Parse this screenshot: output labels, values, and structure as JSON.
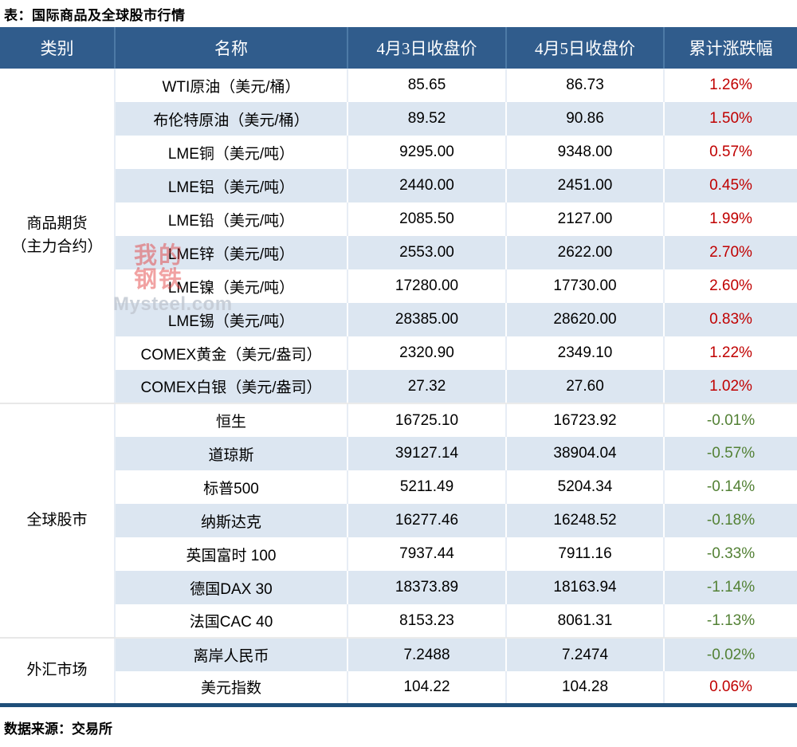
{
  "chart_data": {
    "type": "table",
    "title": "表：国际商品及全球股市行情",
    "source": "数据来源：交易所",
    "columns": [
      "类别",
      "名称",
      "4月3日收盘价",
      "4月5日收盘价",
      "累计涨跌幅"
    ],
    "groups": [
      {
        "category": "商品期货（主力合约）",
        "category_lines": [
          "商品期货",
          "（主力合约）"
        ],
        "rows": [
          {
            "name": "WTI原油（美元/桶）",
            "apr3": "85.65",
            "apr5": "86.73",
            "change": "1.26%"
          },
          {
            "name": "布伦特原油（美元/桶）",
            "apr3": "89.52",
            "apr5": "90.86",
            "change": "1.50%"
          },
          {
            "name": "LME铜（美元/吨）",
            "apr3": "9295.00",
            "apr5": "9348.00",
            "change": "0.57%"
          },
          {
            "name": "LME铝（美元/吨）",
            "apr3": "2440.00",
            "apr5": "2451.00",
            "change": "0.45%"
          },
          {
            "name": "LME铅（美元/吨）",
            "apr3": "2085.50",
            "apr5": "2127.00",
            "change": "1.99%"
          },
          {
            "name": "LME锌（美元/吨）",
            "apr3": "2553.00",
            "apr5": "2622.00",
            "change": "2.70%"
          },
          {
            "name": "LME镍（美元/吨）",
            "apr3": "17280.00",
            "apr5": "17730.00",
            "change": "2.60%"
          },
          {
            "name": "LME锡（美元/吨）",
            "apr3": "28385.00",
            "apr5": "28620.00",
            "change": "0.83%"
          },
          {
            "name": "COMEX黄金（美元/盎司）",
            "apr3": "2320.90",
            "apr5": "2349.10",
            "change": "1.22%"
          },
          {
            "name": "COMEX白银（美元/盎司）",
            "apr3": "27.32",
            "apr5": "27.60",
            "change": "1.02%"
          }
        ]
      },
      {
        "category": "全球股市",
        "category_lines": [
          "全球股市"
        ],
        "rows": [
          {
            "name": "恒生",
            "apr3": "16725.10",
            "apr5": "16723.92",
            "change": "-0.01%"
          },
          {
            "name": "道琼斯",
            "apr3": "39127.14",
            "apr5": "38904.04",
            "change": "-0.57%"
          },
          {
            "name": "标普500",
            "apr3": "5211.49",
            "apr5": "5204.34",
            "change": "-0.14%"
          },
          {
            "name": "纳斯达克",
            "apr3": "16277.46",
            "apr5": "16248.52",
            "change": "-0.18%"
          },
          {
            "name": "英国富时 100",
            "apr3": "7937.44",
            "apr5": "7911.16",
            "change": "-0.33%"
          },
          {
            "name": "德国DAX 30",
            "apr3": "18373.89",
            "apr5": "18163.94",
            "change": "-1.14%"
          },
          {
            "name": "法国CAC 40",
            "apr3": "8153.23",
            "apr5": "8061.31",
            "change": "-1.13%"
          }
        ]
      },
      {
        "category": "外汇市场",
        "category_lines": [
          "外汇市场"
        ],
        "rows": [
          {
            "name": "离岸人民币",
            "apr3": "7.2488",
            "apr5": "7.2474",
            "change": "-0.02%"
          },
          {
            "name": "美元指数",
            "apr3": "104.22",
            "apr5": "104.28",
            "change": "0.06%"
          }
        ]
      }
    ]
  },
  "watermark": {
    "logo_lines": [
      "我的",
      "钢铁"
    ],
    "site": "Mysteel.com"
  },
  "colors": {
    "header_bg": "#305c8c",
    "header_text": "#ffffff",
    "row_stripe": "#dce6f1",
    "positive_red": "#c00000",
    "negative_green": "#538135",
    "bottom_border": "#1f4e79"
  }
}
